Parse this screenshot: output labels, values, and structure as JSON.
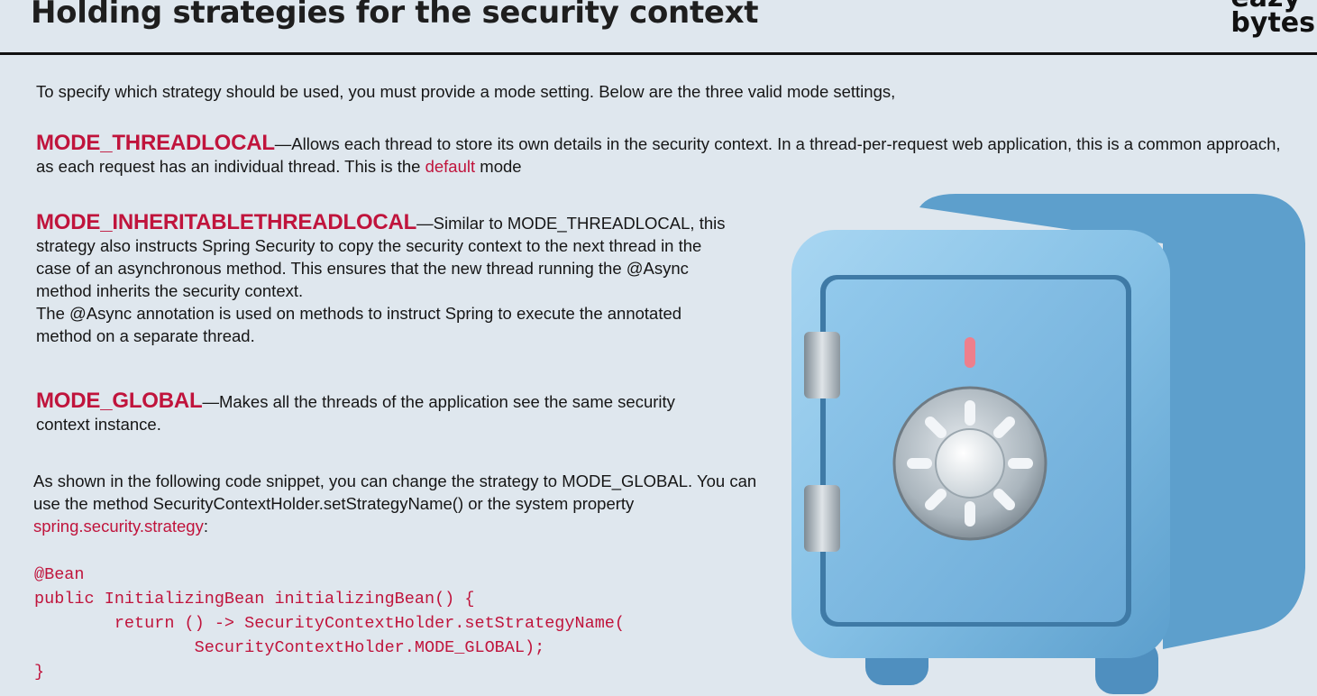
{
  "slide": {
    "title": "Holding strategies for the security context",
    "logo_line1": "eazy",
    "logo_line2": "bytes"
  },
  "intro": "To specify which strategy should be used, you must provide a mode setting. Below are the three valid mode settings,",
  "modes": [
    {
      "name": "MODE_THREADLOCAL",
      "dash": "—",
      "text_before": "Allows each thread to store its own details in the security context. In a thread-per-request web application, this is a common approach, as each request has an individual thread. This is the ",
      "highlight": "default",
      "text_after": " mode"
    },
    {
      "name": "MODE_INHERITABLETHREADLOCAL",
      "dash": "—",
      "text": "Similar to MODE_THREADLOCAL, this strategy also instructs Spring Security to copy the security context to the next thread in the case of an asynchronous method. This ensures that the new thread running the @Async method inherits the security context.",
      "text2": "The @Async annotation is used on methods to instruct Spring to execute the annotated method on a separate thread."
    },
    {
      "name": "MODE_GLOBAL",
      "dash": "—",
      "text": "Makes all the threads of the application see the same security context instance."
    }
  ],
  "outro": {
    "text": "As shown in the following code snippet, you can change the strategy to MODE_GLOBAL. You can use the method SecurityContextHolder.setStrategyName() or the system property ",
    "highlight": "spring.security.strategy",
    "end": ":"
  },
  "code_lines": [
    "@Bean",
    "public InitializingBean initializingBean() {",
    "        return () -> SecurityContextHolder.setStrategyName(",
    "                SecurityContextHolder.MODE_GLOBAL);",
    "}"
  ],
  "colors": {
    "accent": "#c0143c",
    "background": "#dfe7ee",
    "safe_body": "#86c1e6",
    "dial_marker": "#ee7f8c"
  }
}
